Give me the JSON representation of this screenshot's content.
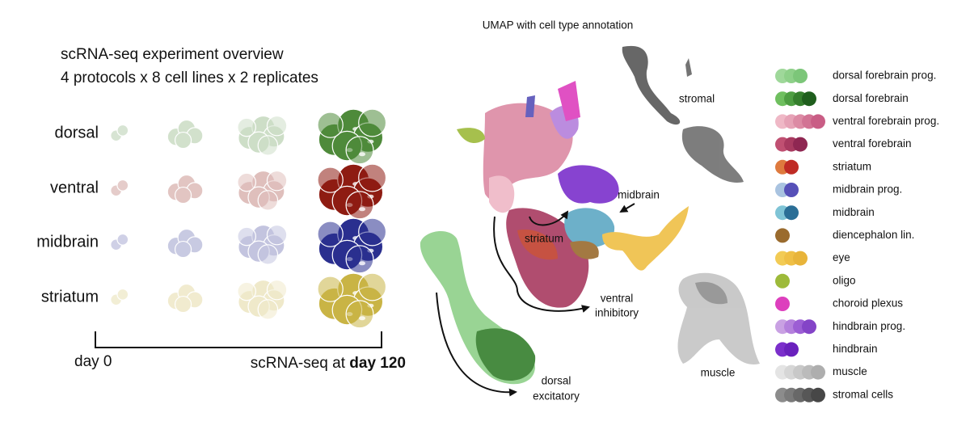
{
  "overview": {
    "title": "scRNA-seq experiment overview",
    "subtitle": "4 protocols x 8 cell lines x 2 replicates",
    "protocols": [
      {
        "label": "dorsal",
        "color": "#4e8a3a"
      },
      {
        "label": "ventral",
        "color": "#8e1c12"
      },
      {
        "label": "midbrain",
        "color": "#2a2f8f"
      },
      {
        "label": "striatum",
        "color": "#c9b445"
      }
    ],
    "timeline": {
      "start": "day 0",
      "end_prefix": "scRNA-seq at",
      "end_bold": "day 120"
    }
  },
  "umap": {
    "title": "UMAP with cell type annotation",
    "annotations": {
      "stromal": "stromal",
      "midbrain": "midbrain",
      "striatum": "striatum",
      "ventral": [
        "ventral",
        "inhibitory"
      ],
      "muscle": "muscle",
      "dorsal": [
        "dorsal",
        "excitatory"
      ]
    }
  },
  "legend": [
    {
      "label": "dorsal forebrain prog.",
      "colors": [
        "#9fd89a",
        "#8ed089",
        "#7cc679"
      ]
    },
    {
      "label": "dorsal forebrain",
      "colors": [
        "#6fbf5f",
        "#4e9e42",
        "#357f2d",
        "#1f5e1d"
      ]
    },
    {
      "label": "ventral forebrain prog.",
      "colors": [
        "#efb8c6",
        "#e6a2b6",
        "#dc8aa4",
        "#d27394",
        "#c95d85"
      ]
    },
    {
      "label": "ventral forebrain",
      "colors": [
        "#c05072",
        "#a83a60",
        "#8f2752"
      ]
    },
    {
      "label": "striatum",
      "colors": [
        "#de7a3e",
        "#bf2b25"
      ]
    },
    {
      "label": "midbrain prog.",
      "colors": [
        "#a9c3e0",
        "#5650b8"
      ]
    },
    {
      "label": "midbrain",
      "colors": [
        "#7fc4d6",
        "#2a6e96"
      ]
    },
    {
      "label": "diencephalon lin.",
      "colors": [
        "#9a6b2e"
      ]
    },
    {
      "label": "eye",
      "colors": [
        "#f2cb55",
        "#efbf45",
        "#e8b43a"
      ]
    },
    {
      "label": "oligo",
      "colors": [
        "#9dba3a"
      ]
    },
    {
      "label": "choroid plexus",
      "colors": [
        "#dd3fbd"
      ]
    },
    {
      "label": "hindbrain prog.",
      "colors": [
        "#c9a1e3",
        "#b480dc",
        "#9c5ed4",
        "#8444c7"
      ]
    },
    {
      "label": "hindbrain",
      "colors": [
        "#7b2fcb",
        "#6a21bd"
      ]
    },
    {
      "label": "muscle",
      "colors": [
        "#e4e4e4",
        "#d6d6d6",
        "#c8c8c8",
        "#bbbbbb",
        "#aeaeae"
      ]
    },
    {
      "label": "stromal cells",
      "colors": [
        "#8c8c8c",
        "#7a7a7a",
        "#686868",
        "#575757",
        "#474747"
      ]
    }
  ]
}
